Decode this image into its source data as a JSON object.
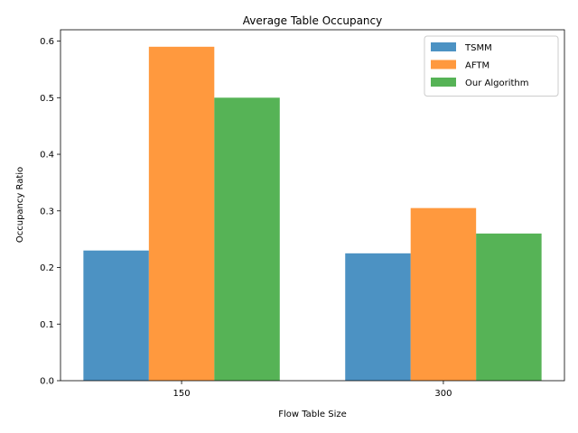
{
  "chart_data": {
    "type": "bar",
    "title": "Average Table Occupancy",
    "xlabel": "Flow Table Size",
    "ylabel": "Occupancy Ratio",
    "categories": [
      "150",
      "300"
    ],
    "series": [
      {
        "name": "TSMM",
        "values": [
          0.23,
          0.225
        ],
        "color": "#1f77b4"
      },
      {
        "name": "AFTM",
        "values": [
          0.59,
          0.305
        ],
        "color": "#ff7f0e"
      },
      {
        "name": "Our Algorithm",
        "values": [
          0.5,
          0.26
        ],
        "color": "#2ca02c"
      }
    ],
    "ylim": [
      0,
      0.62
    ],
    "yticks": [
      0.0,
      0.1,
      0.2,
      0.3,
      0.4,
      0.5,
      0.6
    ],
    "ytick_labels": [
      "0.0",
      "0.1",
      "0.2",
      "0.3",
      "0.4",
      "0.5",
      "0.6"
    ],
    "grid": false,
    "legend_position": "top-right"
  }
}
